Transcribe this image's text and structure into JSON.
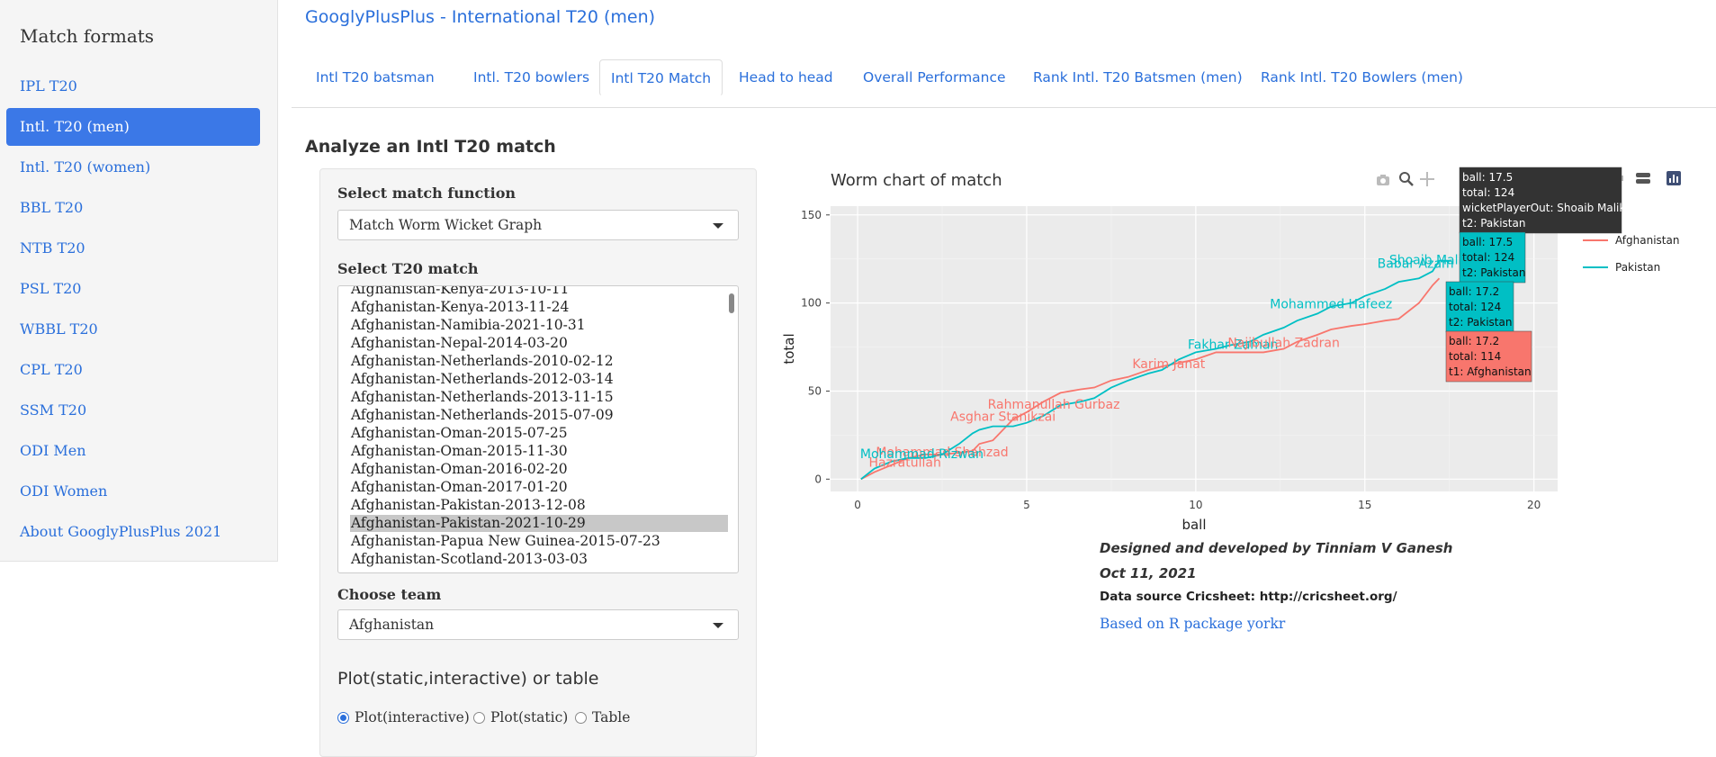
{
  "sidebar": {
    "title": "Match formats",
    "items": [
      {
        "label": "IPL T20"
      },
      {
        "label": "Intl. T20 (men)",
        "active": true
      },
      {
        "label": "Intl. T20 (women)"
      },
      {
        "label": "BBL T20"
      },
      {
        "label": "NTB T20"
      },
      {
        "label": "PSL T20"
      },
      {
        "label": "WBBL T20"
      },
      {
        "label": "CPL T20"
      },
      {
        "label": "SSM T20"
      },
      {
        "label": "ODI Men"
      },
      {
        "label": "ODI Women"
      },
      {
        "label": "About GooglyPlusPlus 2021"
      }
    ]
  },
  "header": {
    "title": "GooglyPlusPlus - International T20 (men)"
  },
  "tabs": [
    {
      "label": "Intl T20 batsman"
    },
    {
      "label": "Intl. T20 bowlers"
    },
    {
      "label": "Intl T20 Match",
      "active": true
    },
    {
      "label": "Head to head"
    },
    {
      "label": "Overall Performance"
    },
    {
      "label": "Rank Intl. T20 Batsmen (men)"
    },
    {
      "label": "Rank Intl. T20 Bowlers (men)"
    }
  ],
  "main": {
    "heading": "Analyze an Intl T20 match",
    "function_label": "Select match function",
    "function_value": "Match Worm Wicket Graph",
    "match_label": "Select T20 match",
    "matches": [
      "Afghanistan-Kenya-2013-10-11",
      "Afghanistan-Kenya-2013-11-24",
      "Afghanistan-Namibia-2021-10-31",
      "Afghanistan-Nepal-2014-03-20",
      "Afghanistan-Netherlands-2010-02-12",
      "Afghanistan-Netherlands-2012-03-14",
      "Afghanistan-Netherlands-2013-11-15",
      "Afghanistan-Netherlands-2015-07-09",
      "Afghanistan-Oman-2015-07-25",
      "Afghanistan-Oman-2015-11-30",
      "Afghanistan-Oman-2016-02-20",
      "Afghanistan-Oman-2017-01-20",
      "Afghanistan-Pakistan-2013-12-08",
      "Afghanistan-Pakistan-2021-10-29",
      "Afghanistan-Papua New Guinea-2015-07-23",
      "Afghanistan-Scotland-2013-03-03"
    ],
    "selected_match": "Afghanistan-Pakistan-2021-10-29",
    "team_label": "Choose team",
    "team_value": "Afghanistan",
    "plot_heading": "Plot(static,interactive) or table",
    "plot_options": [
      {
        "label": "Plot(interactive)",
        "checked": true
      },
      {
        "label": "Plot(static)",
        "checked": false
      },
      {
        "label": "Table",
        "checked": false
      }
    ]
  },
  "toolbar_icons": [
    "camera-icon",
    "zoom-icon",
    "pan-icon",
    "compare-icon",
    "closest-icon",
    "plotly-logo-icon"
  ],
  "chart_data": {
    "type": "line",
    "title": "Worm chart of match",
    "xlabel": "ball",
    "ylabel": "total",
    "xlim": [
      -0.8,
      20.7
    ],
    "ylim": [
      -7,
      155
    ],
    "xticks": [
      0,
      5,
      10,
      15,
      20
    ],
    "yticks": [
      0,
      50,
      100,
      150
    ],
    "grid": true,
    "legend": "top-right",
    "series": [
      {
        "name": "Afghanistan",
        "color": "#f8766d",
        "x": [
          0.1,
          0.5,
          1.0,
          1.5,
          2.0,
          2.5,
          3.0,
          3.4,
          3.6,
          4.0,
          4.6,
          5.0,
          5.5,
          6.0,
          6.6,
          7.0,
          7.5,
          8.0,
          8.6,
          9.0,
          9.5,
          10.0,
          10.6,
          11.0,
          11.6,
          12.0,
          12.6,
          13.0,
          13.6,
          14.0,
          14.6,
          15.0,
          15.6,
          16.0,
          16.6,
          17.0,
          17.2
        ],
        "y": [
          0,
          4,
          8,
          12,
          14,
          14,
          15,
          16,
          20,
          22,
          34,
          38,
          44,
          49,
          51,
          52,
          56,
          58,
          62,
          64,
          66,
          68,
          72,
          72,
          72,
          72,
          74,
          78,
          82,
          85,
          87,
          88,
          90,
          91,
          100,
          110,
          114
        ]
      },
      {
        "name": "Pakistan",
        "color": "#00bfc4",
        "x": [
          0.1,
          0.5,
          1.0,
          1.5,
          2.0,
          2.5,
          3.0,
          3.4,
          3.6,
          4.0,
          4.6,
          5.0,
          5.5,
          6.0,
          6.6,
          7.0,
          7.5,
          8.0,
          8.6,
          9.0,
          9.5,
          10.0,
          10.6,
          11.0,
          11.6,
          12.0,
          12.6,
          13.0,
          13.6,
          14.0,
          14.6,
          15.0,
          15.6,
          16.0,
          16.6,
          17.0,
          17.2,
          17.5
        ],
        "y": [
          0,
          6,
          10,
          12,
          12,
          14,
          20,
          26,
          28,
          30,
          30,
          32,
          36,
          42,
          44,
          46,
          52,
          56,
          60,
          62,
          68,
          72,
          74,
          76,
          78,
          82,
          86,
          90,
          94,
          98,
          100,
          104,
          108,
          112,
          114,
          118,
          124,
          124
        ]
      }
    ],
    "wicket_labels": [
      {
        "text": "Hazratullah",
        "x": 1.4,
        "y": 7,
        "series": "Afghanistan"
      },
      {
        "text": "Mohammad Shahzad",
        "x": 2.5,
        "y": 13,
        "series": "Afghanistan"
      },
      {
        "text": "Mohammad Rizwan",
        "x": 1.9,
        "y": 12,
        "series": "Pakistan"
      },
      {
        "text": "Asghar Stanikzai",
        "x": 4.3,
        "y": 33,
        "series": "Afghanistan"
      },
      {
        "text": "Rahmanullah Gurbaz",
        "x": 5.8,
        "y": 40,
        "series": "Afghanistan"
      },
      {
        "text": "Karim Janat",
        "x": 9.2,
        "y": 63,
        "series": "Afghanistan"
      },
      {
        "text": "Fakhar Zaman",
        "x": 11.1,
        "y": 74,
        "series": "Pakistan"
      },
      {
        "text": "Najibullah Zadran",
        "x": 12.6,
        "y": 75,
        "series": "Afghanistan"
      },
      {
        "text": "Mohammed Hafeez",
        "x": 14.0,
        "y": 97,
        "series": "Pakistan"
      },
      {
        "text": "Babar Azam",
        "x": 16.5,
        "y": 120,
        "series": "Pakistan"
      },
      {
        "text": "Shoaib Malik",
        "x": 16.9,
        "y": 122,
        "series": "Pakistan"
      }
    ],
    "hover_boxes": [
      {
        "lines": [
          "ball: 17.5",
          "total: 124",
          "wicketPlayerOut: Shoaib Malik",
          "t2: Pakistan"
        ],
        "color": "#333333"
      },
      {
        "lines": [
          "ball: 17.5",
          "total: 124",
          "t2: Pakistan"
        ],
        "color": "#00bfc4"
      },
      {
        "lines": [
          "ball: 17.2",
          "total: 124",
          "t2: Pakistan"
        ],
        "color": "#00bfc4"
      },
      {
        "lines": [
          "ball: 17.2",
          "total: 114",
          "t1: Afghanistan"
        ],
        "color": "#f8766d"
      }
    ]
  },
  "credits": {
    "line1": "Designed and developed by Tinniam V Ganesh",
    "line2": "Oct 11, 2021",
    "line3": "Data source Cricsheet: http://cricsheet.org/",
    "link": "Based on R package yorkr"
  }
}
